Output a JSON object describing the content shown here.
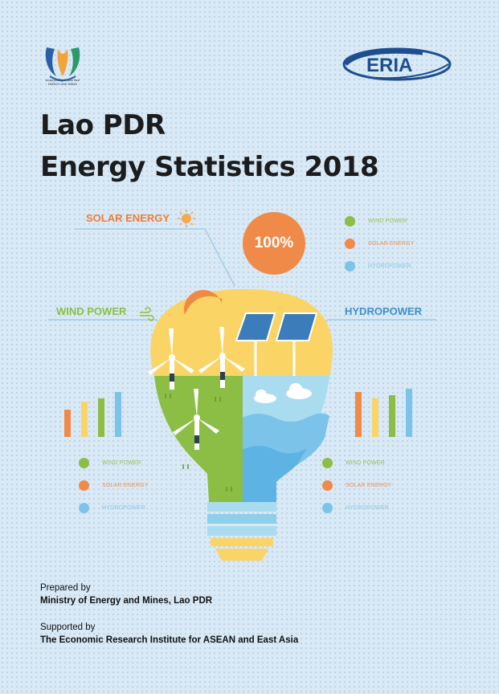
{
  "header": {
    "ministry_logo_caption": "ກະຊວງພະລັງງານ ແລະ ບໍ່ແຮ່\nENERGY AND MINES",
    "partner_logo_text": "ERIA"
  },
  "title": {
    "line1": "Lao PDR",
    "line2": "Energy Statistics 2018"
  },
  "infographic": {
    "solar_label": "SOLAR ENERGY",
    "wind_label": "WIND POWER",
    "hydro_label": "HYDROPOWER",
    "percent_badge": "100%",
    "icons": [
      "sun-icon",
      "wind-icon",
      "light-bulb-illustration",
      "solar-panel-icon",
      "wind-turbine-icon",
      "cloud-icon",
      "bar-chart-icon"
    ],
    "colors": {
      "wind": "#8cbd44",
      "solar": "#ee7e3a",
      "hydro": "#7cc3ea",
      "bulb_yellow": "#fbd466",
      "bulb_base": "#a9dcee"
    }
  },
  "legends": {
    "top": [
      {
        "label": "WIND POWER",
        "color": "#8cbd44"
      },
      {
        "label": "SOLAR ENERGY",
        "color": "#f08a48"
      },
      {
        "label": "HYDROPOWER",
        "color": "#7cc3ea"
      }
    ],
    "left": [
      {
        "label": "WIND POWER",
        "color": "#8cbd44"
      },
      {
        "label": "SOLAR ENERGY",
        "color": "#f08a48"
      },
      {
        "label": "HYDROPOWER",
        "color": "#7cc3ea"
      }
    ],
    "right": [
      {
        "label": "WIND POWER",
        "color": "#8cbd44"
      },
      {
        "label": "SOLAR ENERGY",
        "color": "#f08a48"
      },
      {
        "label": "HYDROPOWER",
        "color": "#7cc3ea"
      }
    ]
  },
  "credits": {
    "prepared_label": "Prepared by",
    "prepared_org": "Ministry of Energy and Mines, Lao PDR",
    "supported_label": "Supported by",
    "supported_org": "The Economic Research Institute for ASEAN and East Asia"
  }
}
